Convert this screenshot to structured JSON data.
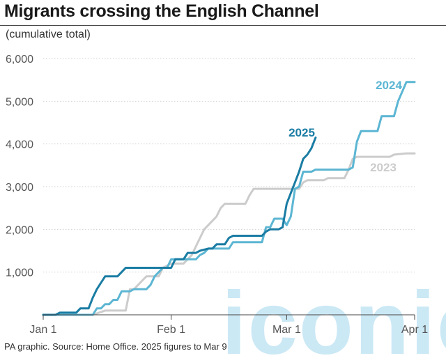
{
  "title": "Migrants crossing the English Channel",
  "subtitle": "(cumulative total)",
  "footer": "PA graphic. Source: Home Office. 2025 figures to Mar 9",
  "watermark": "iconic",
  "colors": {
    "s2025": "#1a7ca3",
    "s2024": "#5cb6d3",
    "s2023": "#cccccc",
    "watermark": "#cbe8f5"
  },
  "chart_data": {
    "type": "line",
    "title": "Migrants crossing the English Channel",
    "subtitle": "(cumulative total)",
    "xlabel": "",
    "ylabel": "",
    "x_unit": "day of year (Jan 1 = 1)",
    "xlim": [
      1,
      91
    ],
    "ylim": [
      0,
      6000
    ],
    "x_ticks": [
      {
        "label": "Jan 1",
        "value": 1
      },
      {
        "label": "Feb 1",
        "value": 32
      },
      {
        "label": "Mar 1",
        "value": 60
      },
      {
        "label": "Apr 1",
        "value": 91
      }
    ],
    "y_ticks": [
      {
        "label": "1,000",
        "value": 1000
      },
      {
        "label": "2,000",
        "value": 2000
      },
      {
        "label": "3,000",
        "value": 3000
      },
      {
        "label": "4,000",
        "value": 4000
      },
      {
        "label": "5,000",
        "value": 5000
      },
      {
        "label": "6,000",
        "value": 6000
      }
    ],
    "grid": true,
    "series": [
      {
        "name": "2023",
        "color": "#cccccc",
        "points": [
          [
            1,
            0
          ],
          [
            13,
            0
          ],
          [
            16,
            100
          ],
          [
            21,
            100
          ],
          [
            22,
            600
          ],
          [
            23,
            600
          ],
          [
            24,
            700
          ],
          [
            25,
            800
          ],
          [
            26,
            900
          ],
          [
            29,
            900
          ],
          [
            30,
            1100
          ],
          [
            32,
            1200
          ],
          [
            35,
            1200
          ],
          [
            36,
            1300
          ],
          [
            37,
            1400
          ],
          [
            38,
            1600
          ],
          [
            39,
            1800
          ],
          [
            40,
            2000
          ],
          [
            41,
            2100
          ],
          [
            42,
            2200
          ],
          [
            43,
            2300
          ],
          [
            44,
            2500
          ],
          [
            45,
            2600
          ],
          [
            46,
            2600
          ],
          [
            50,
            2600
          ],
          [
            51,
            2800
          ],
          [
            52,
            2950
          ],
          [
            58,
            2950
          ],
          [
            60,
            2950
          ],
          [
            63,
            2950
          ],
          [
            64,
            3100
          ],
          [
            65,
            3150
          ],
          [
            69,
            3150
          ],
          [
            70,
            3200
          ],
          [
            74,
            3200
          ],
          [
            75,
            3400
          ],
          [
            76,
            3650
          ],
          [
            77,
            3700
          ],
          [
            85,
            3700
          ],
          [
            86,
            3750
          ],
          [
            89,
            3780
          ],
          [
            91,
            3780
          ]
        ]
      },
      {
        "name": "2024",
        "color": "#5cb6d3",
        "points": [
          [
            1,
            0
          ],
          [
            6,
            0
          ],
          [
            13,
            0
          ],
          [
            14,
            150
          ],
          [
            15,
            150
          ],
          [
            16,
            250
          ],
          [
            17,
            250
          ],
          [
            18,
            350
          ],
          [
            19,
            350
          ],
          [
            20,
            550
          ],
          [
            22,
            550
          ],
          [
            23,
            600
          ],
          [
            26,
            600
          ],
          [
            27,
            700
          ],
          [
            28,
            900
          ],
          [
            30,
            1100
          ],
          [
            31,
            1100
          ],
          [
            32,
            1300
          ],
          [
            38,
            1300
          ],
          [
            39,
            1400
          ],
          [
            40,
            1450
          ],
          [
            41,
            1550
          ],
          [
            46,
            1550
          ],
          [
            47,
            1700
          ],
          [
            54,
            1700
          ],
          [
            55,
            2050
          ],
          [
            56,
            2050
          ],
          [
            57,
            2250
          ],
          [
            59,
            2250
          ],
          [
            60,
            2100
          ],
          [
            61,
            2300
          ],
          [
            62,
            2950
          ],
          [
            63,
            3000
          ],
          [
            64,
            3350
          ],
          [
            66,
            3350
          ],
          [
            67,
            3400
          ],
          [
            75,
            3400
          ],
          [
            76,
            3450
          ],
          [
            77,
            4050
          ],
          [
            78,
            4300
          ],
          [
            82,
            4300
          ],
          [
            83,
            4650
          ],
          [
            86,
            4650
          ],
          [
            87,
            5000
          ],
          [
            89,
            5450
          ],
          [
            91,
            5450
          ]
        ]
      },
      {
        "name": "2025",
        "color": "#1a7ca3",
        "points": [
          [
            1,
            0
          ],
          [
            4,
            0
          ],
          [
            5,
            50
          ],
          [
            9,
            50
          ],
          [
            10,
            150
          ],
          [
            12,
            150
          ],
          [
            13,
            400
          ],
          [
            14,
            600
          ],
          [
            15,
            750
          ],
          [
            16,
            900
          ],
          [
            19,
            900
          ],
          [
            20,
            1000
          ],
          [
            21,
            1100
          ],
          [
            32,
            1100
          ],
          [
            33,
            1300
          ],
          [
            35,
            1300
          ],
          [
            36,
            1450
          ],
          [
            38,
            1450
          ],
          [
            39,
            1500
          ],
          [
            41,
            1550
          ],
          [
            42,
            1550
          ],
          [
            43,
            1650
          ],
          [
            45,
            1650
          ],
          [
            46,
            1800
          ],
          [
            47,
            1850
          ],
          [
            54,
            1850
          ],
          [
            55,
            1950
          ],
          [
            56,
            2000
          ],
          [
            58,
            2000
          ],
          [
            59,
            2050
          ],
          [
            60,
            2600
          ],
          [
            61,
            2850
          ],
          [
            62,
            3100
          ],
          [
            63,
            3350
          ],
          [
            64,
            3650
          ],
          [
            65,
            3750
          ],
          [
            66,
            3900
          ],
          [
            67,
            4150
          ]
        ]
      }
    ]
  }
}
